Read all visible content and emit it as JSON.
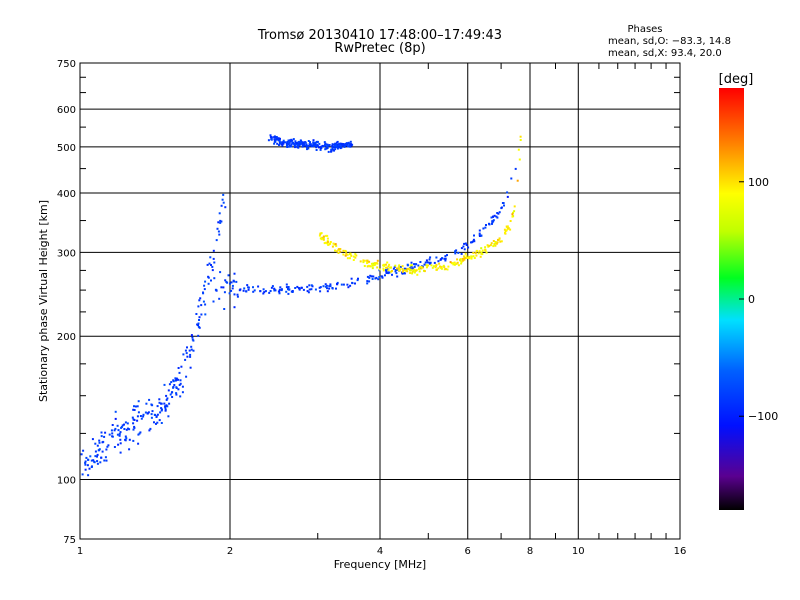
{
  "chart_data": {
    "type": "scatter",
    "title": "Tromsø 20130410 17:48:00–17:49:43",
    "subtitle": "RwPretec (8p)",
    "xlabel": "Frequency [MHz]",
    "ylabel": "Stationary phase Virtual Height [km]",
    "xscale": "log2",
    "yscale": "log",
    "xlim": [
      1,
      16
    ],
    "ylim": [
      75,
      750
    ],
    "x_ticks": [
      1,
      2,
      4,
      6,
      8,
      10,
      16
    ],
    "x_ticklabels": [
      "1",
      "2",
      "4",
      "6",
      "8",
      "10",
      "16"
    ],
    "y_ticks": [
      75,
      100,
      200,
      300,
      400,
      500,
      600,
      750
    ],
    "y_ticklabels": [
      "75",
      "100",
      "200",
      "300",
      "400",
      "500",
      "600",
      "750"
    ],
    "grid": true,
    "colorbar": {
      "label": "[deg]",
      "range": [
        -180,
        180
      ],
      "ticks": [
        100,
        0,
        -100
      ],
      "ticklabels": [
        "100",
        "0",
        "−100"
      ],
      "colormap": "rainbow-black-violet-blue-cyan-green-yellow-orange-red"
    },
    "phases_box": {
      "title": "Phases",
      "line1": "mean, sd,O: −83.3, 14.8",
      "line2": "mean, sd,X:  93.4, 20.0"
    },
    "series": [
      {
        "mode": "O",
        "phase_mean": -83.3,
        "phase_sd": 14.8,
        "traces": [
          {
            "x": [
              1.0,
              1.1,
              1.2,
              1.35,
              1.5,
              1.6,
              1.7,
              1.8,
              1.9,
              1.95
            ],
            "y": [
              105,
              115,
              125,
              135,
              145,
              165,
              200,
              260,
              330,
              400
            ]
          },
          {
            "x": [
              1.85,
              2.0,
              2.2,
              2.5,
              2.8,
              3.0,
              3.3,
              3.6,
              4.0,
              4.5,
              5.0,
              5.5,
              6.0,
              6.5,
              7.0,
              7.3,
              7.5
            ],
            "y": [
              255,
              252,
              250,
              250,
              252,
              253,
              256,
              260,
              268,
              278,
              285,
              295,
              310,
              335,
              370,
              410,
              450
            ]
          },
          {
            "x": [
              2.4,
              2.6,
              2.9,
              3.2,
              3.5
            ],
            "y": [
              520,
              510,
              505,
              500,
              505
            ]
          }
        ]
      },
      {
        "mode": "X",
        "phase_mean": 93.4,
        "phase_sd": 20.0,
        "traces": [
          {
            "x": [
              3.0,
              3.2,
              3.5,
              3.8,
              4.2,
              4.6,
              5.0,
              5.5,
              6.0,
              6.5,
              7.0,
              7.3,
              7.5,
              7.6,
              7.7
            ],
            "y": [
              330,
              310,
              295,
              285,
              278,
              275,
              276,
              282,
              292,
              305,
              320,
              345,
              380,
              450,
              560
            ]
          }
        ]
      }
    ]
  }
}
